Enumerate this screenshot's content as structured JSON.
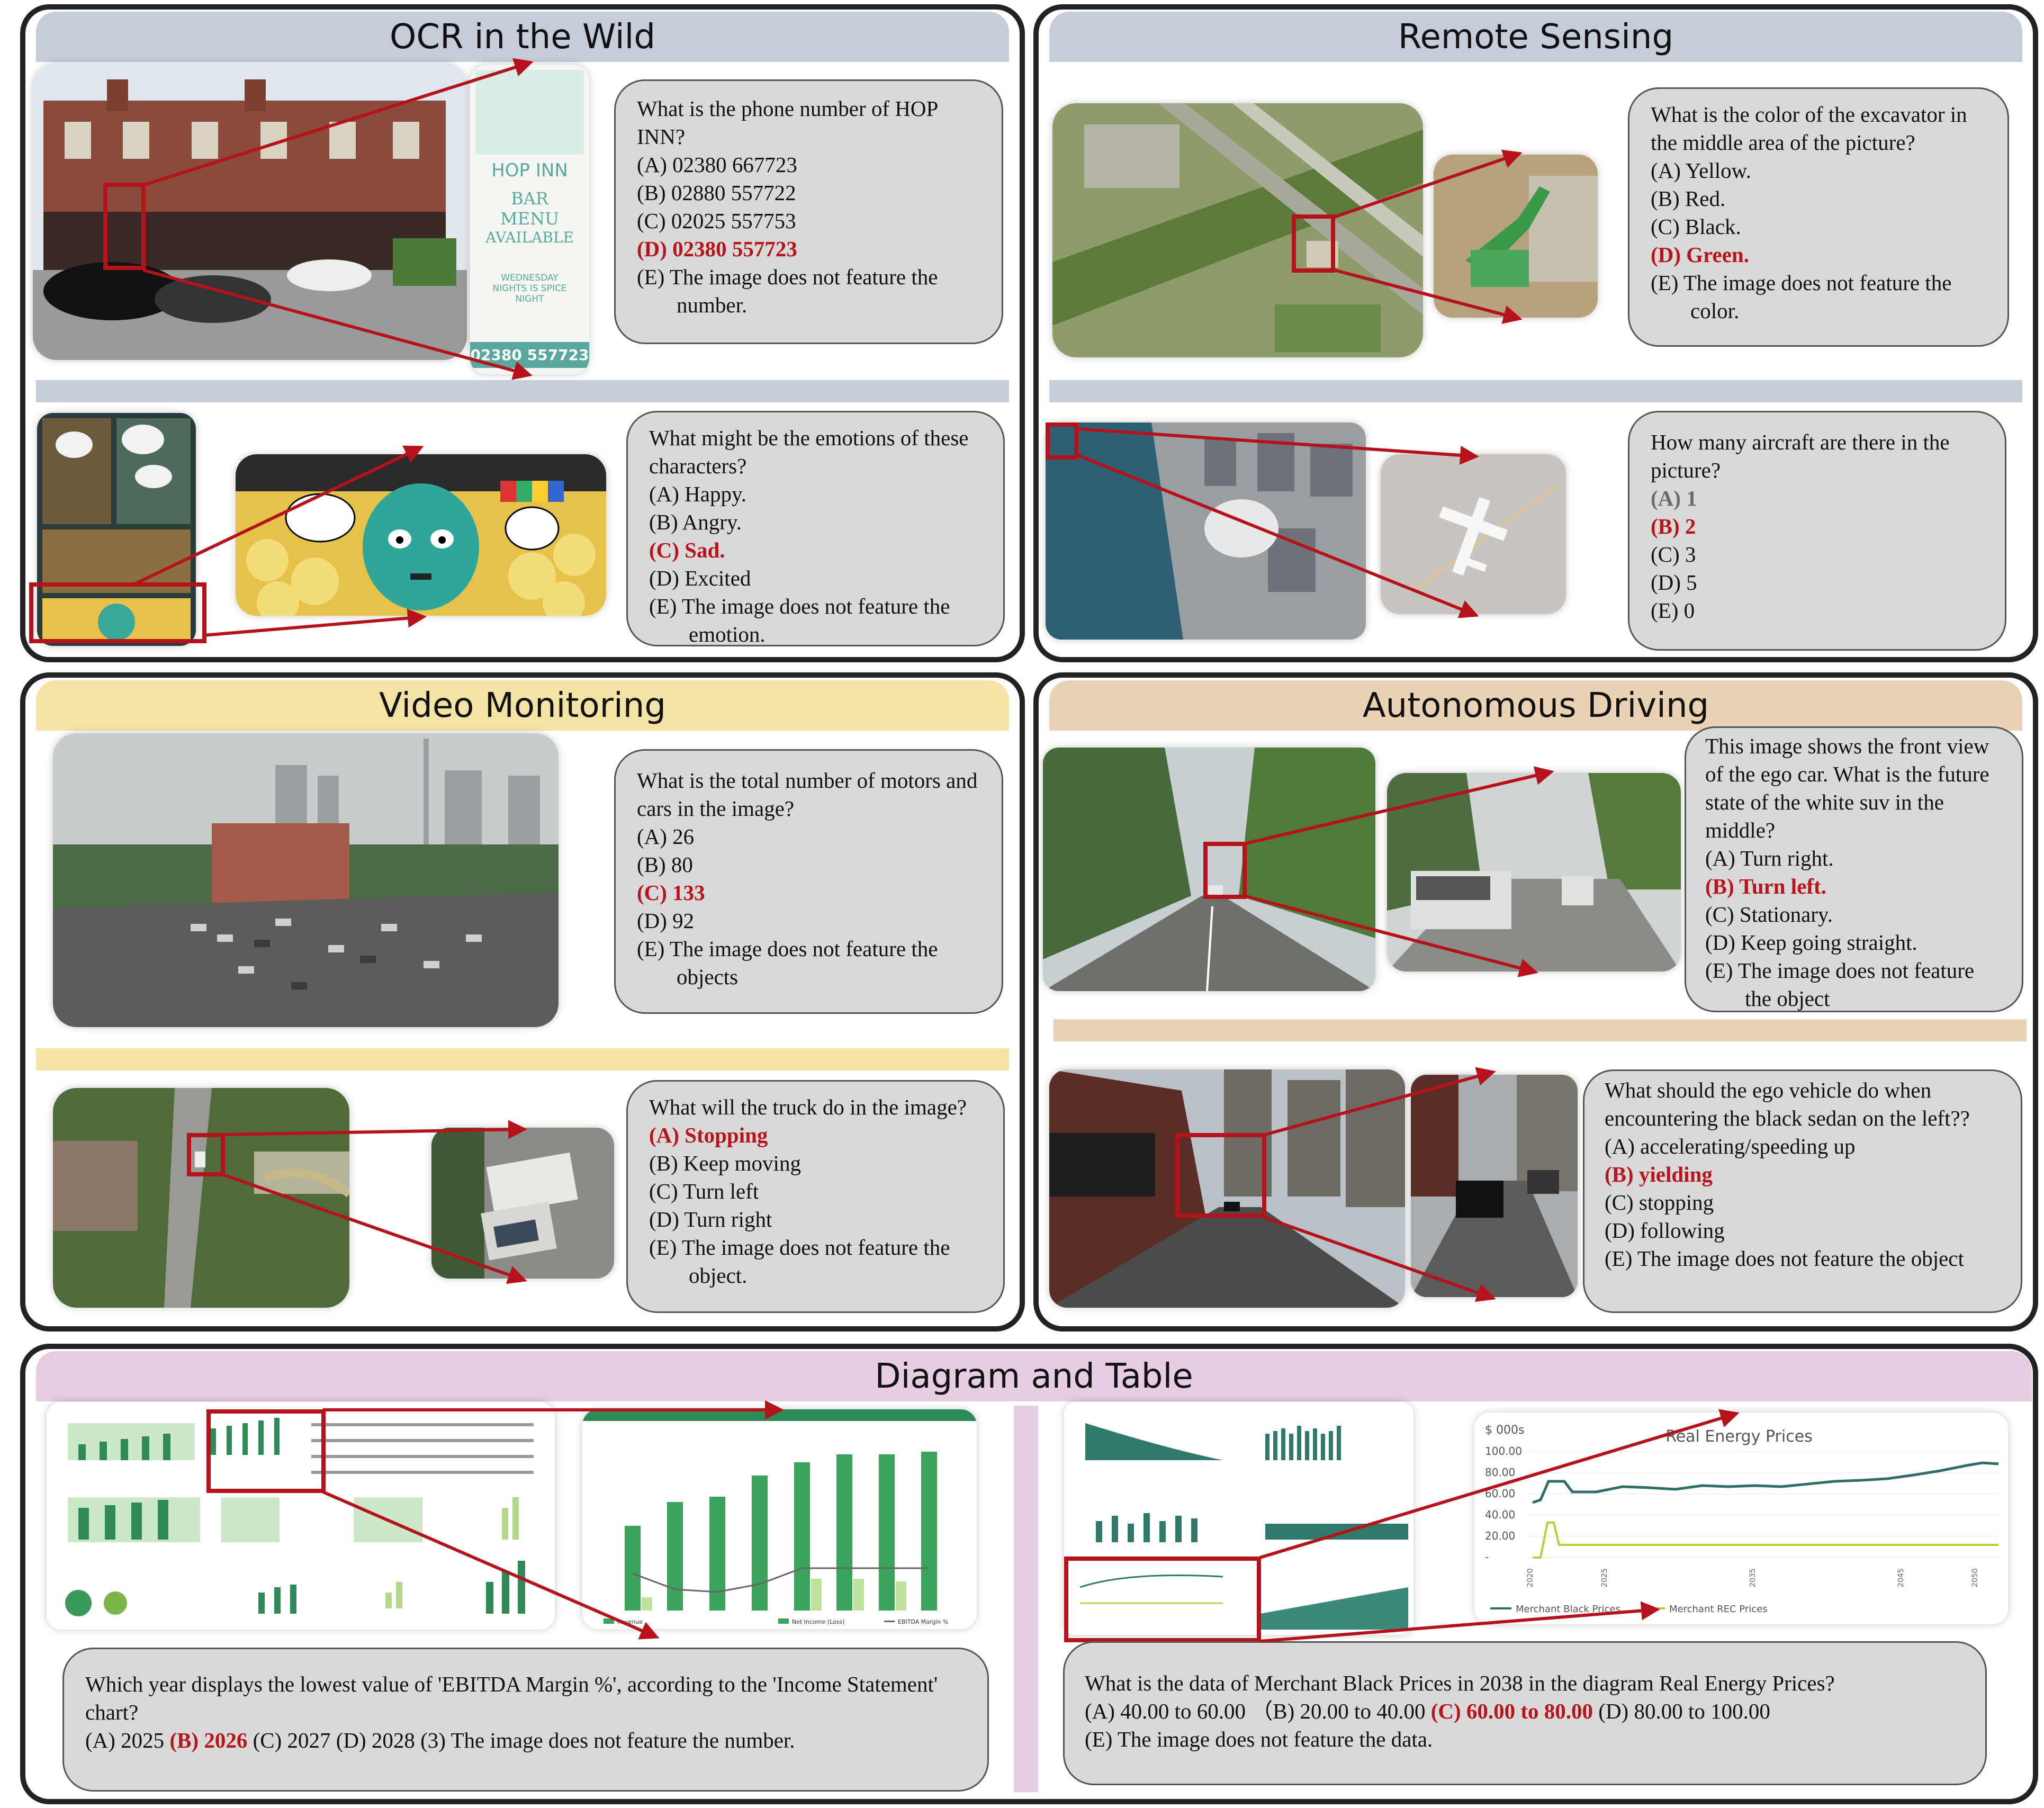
{
  "colors": {
    "answer": "#b7141c",
    "arrow": "#b5121b",
    "border": "#222222",
    "qbox": "#d9d9d9"
  },
  "sections": {
    "ocr": {
      "title": "OCR in the Wild",
      "q1": {
        "question": "What is the phone number of HOP INN?",
        "options": [
          "(A) 02380 667723",
          "(B) 02880 557722",
          "(C) 02025 557753",
          "(D) 02380 557723",
          "(E) The image does not feature the number."
        ],
        "answer_index": 3
      },
      "sign": {
        "name": "HOP INN",
        "line1": "BAR",
        "line2": "MENU",
        "line3": "AVAILABLE",
        "line4": "WEDNESDAY",
        "line5": "NIGHTS IS SPICE",
        "line6": "NIGHT",
        "phone": "02380 557723"
      },
      "q2": {
        "question": "What might be the emotions of these characters?",
        "options": [
          "(A) Happy.",
          "(B) Angry.",
          "(C) Sad.",
          "(D) Excited",
          "(E) The image does not feature the emotion."
        ],
        "answer_index": 2
      }
    },
    "remote": {
      "title": "Remote Sensing",
      "q1": {
        "question": "What is the color of the excavator in the middle area of the picture?",
        "options": [
          "(A) Yellow.",
          "(B) Red.",
          "(C) Black.",
          "(D) Green.",
          "(E) The image does not feature the color."
        ],
        "answer_index": 3
      },
      "q2": {
        "question": "How many aircraft are there in the picture?",
        "options": [
          "(A) 1",
          "(B) 2",
          "(C) 3",
          "(D) 5",
          "(E) 0"
        ],
        "answer_index": 1
      }
    },
    "video": {
      "title": "Video Monitoring",
      "q1": {
        "question": "What is the total number of motors and cars in the image?",
        "options": [
          "(A) 26",
          "(B) 80",
          "(C) 133",
          "(D) 92",
          "(E) The image does not feature the objects"
        ],
        "answer_index": 2
      },
      "q2": {
        "question": "What will the truck do in the image?",
        "options": [
          "(A) Stopping",
          "(B) Keep moving",
          "(C) Turn left",
          "(D) Turn right",
          "(E) The image does not feature the object."
        ],
        "answer_index": 0
      }
    },
    "driving": {
      "title": "Autonomous Driving",
      "q1": {
        "question": "This image shows the front view of the ego car. What is the future state of the white suv in the middle?",
        "options": [
          "(A) Turn right.",
          "(B) Turn left.",
          "(C) Stationary.",
          "(D) Keep going straight.",
          "(E) The image does not feature the object"
        ],
        "answer_index": 1
      },
      "q2": {
        "question": "What should the ego vehicle do when encountering the black sedan on the left??",
        "options": [
          "(A) accelerating/speeding up",
          "(B) yielding",
          "(C)  stopping",
          "(D) following",
          "(E) The image does not feature the object"
        ],
        "answer_index": 1
      }
    },
    "diagram": {
      "title": "Diagram and Table",
      "q1": {
        "question": "Which year displays the lowest value of 'EBITDA Margin %', according to the 'Income Statement' chart?",
        "options": [
          "(A) 2025",
          "(B) 2026",
          "(C) 2027",
          "(D) 2028",
          "(3) The image does not feature the number."
        ],
        "answer_index": 1
      },
      "q2": {
        "question": "What is the data of Merchant Black Prices in 2038 in the diagram Real Energy Prices?",
        "options": [
          "(A) 40.00 to 60.00",
          "（B) 20.00 to 40.00",
          "(C) 60.00 to 80.00",
          "(D) 80.00 to 100.00",
          "(E) The image does not feature the data."
        ],
        "answer_index": 2
      },
      "energy_chart": {
        "title": "Real Energy Prices",
        "unit": "$ 000s",
        "y_ticks": [
          "100.00",
          "80.00",
          "60.00",
          "40.00",
          "20.00",
          "-"
        ],
        "legend": [
          "Merchant Black Prices",
          "Merchant REC Prices"
        ]
      },
      "income_chart": {
        "legend": [
          "Revenue",
          "Net Income (Loss)",
          "EBITDA Margin %"
        ]
      }
    }
  }
}
